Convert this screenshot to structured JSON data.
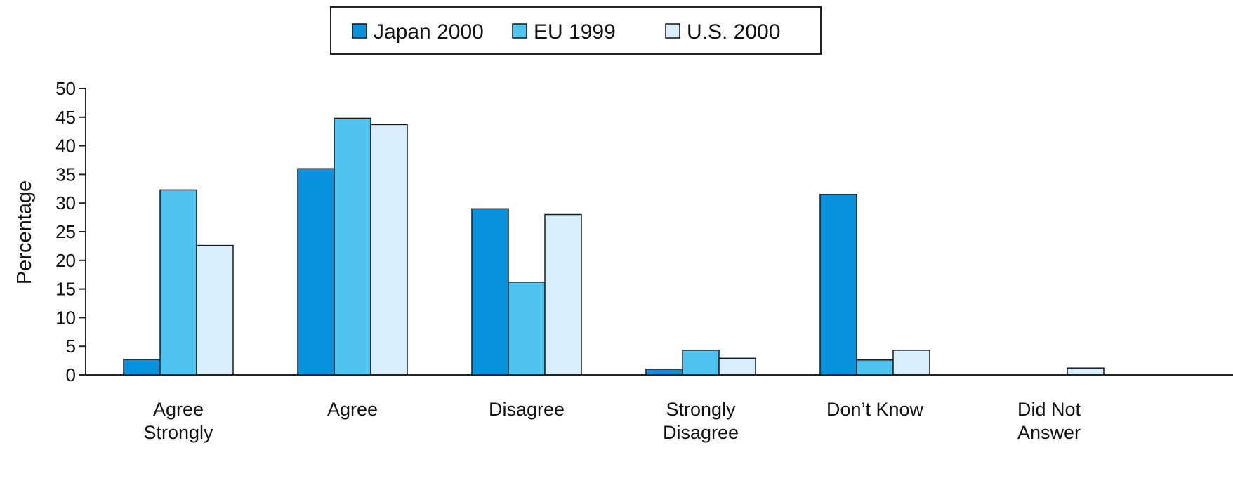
{
  "chart_data": {
    "type": "bar",
    "title": "",
    "xlabel": "",
    "ylabel": "Percentage",
    "ylim": [
      0,
      50
    ],
    "yticks": [
      0,
      5,
      10,
      15,
      20,
      25,
      30,
      35,
      40,
      45,
      50
    ],
    "grid": false,
    "legend_position": "top-center",
    "categories": [
      [
        "Agree",
        "Strongly"
      ],
      [
        "Agree"
      ],
      [
        "Disagree"
      ],
      [
        "Strongly",
        "Disagree"
      ],
      [
        "Don’t Know"
      ],
      [
        "Did Not",
        "Answer"
      ]
    ],
    "series": [
      {
        "name": "Japan 2000",
        "color": "#0891dc",
        "values": [
          2.7,
          36,
          29,
          1,
          31.5,
          0
        ]
      },
      {
        "name": "EU 1999",
        "color": "#4fc4f0",
        "values": [
          32.3,
          44.8,
          16.2,
          4.3,
          2.6,
          0
        ]
      },
      {
        "name": "U.S. 2000",
        "color": "#d8effb",
        "values": [
          22.6,
          43.7,
          28,
          2.9,
          4.3,
          1.2
        ]
      }
    ]
  }
}
